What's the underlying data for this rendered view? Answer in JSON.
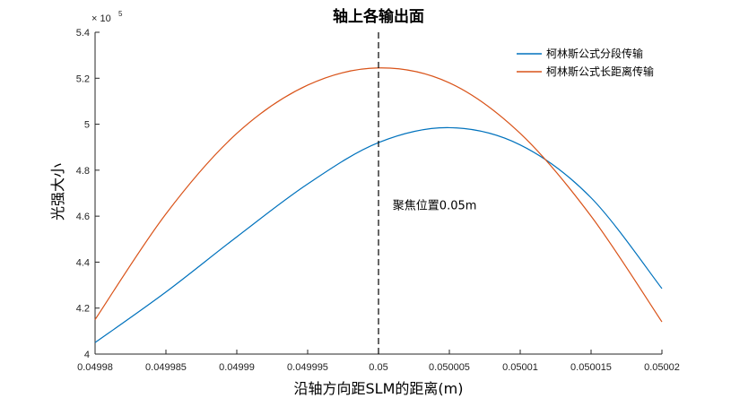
{
  "chart_data": {
    "type": "line",
    "title": "轴上各输出面",
    "xlabel": "沿轴方向距SLM的距离(m)",
    "ylabel": "光强大小",
    "xlim": [
      0.04998,
      0.05002
    ],
    "ylim": [
      400000,
      540000
    ],
    "xticks": [
      {
        "value": 0.04998,
        "label": "0.04998"
      },
      {
        "value": 0.049985,
        "label": "0.049985"
      },
      {
        "value": 0.04999,
        "label": "0.04999"
      },
      {
        "value": 0.049995,
        "label": "0.049995"
      },
      {
        "value": 0.05,
        "label": "0.05"
      },
      {
        "value": 0.050005,
        "label": "0.050005"
      },
      {
        "value": 0.05001,
        "label": "0.05001"
      },
      {
        "value": 0.050015,
        "label": "0.050015"
      },
      {
        "value": 0.05002,
        "label": "0.05002"
      }
    ],
    "yticks": [
      {
        "value": 400000,
        "label": "4"
      },
      {
        "value": 420000,
        "label": "4.2"
      },
      {
        "value": 440000,
        "label": "4.4"
      },
      {
        "value": 460000,
        "label": "4.6"
      },
      {
        "value": 480000,
        "label": "4.8"
      },
      {
        "value": 500000,
        "label": "5"
      },
      {
        "value": 520000,
        "label": "5.2"
      },
      {
        "value": 540000,
        "label": "5.4"
      }
    ],
    "y_multiplier": {
      "base": "× 10",
      "exponent": "5"
    },
    "grid": false,
    "legend_position": "top-right",
    "series": [
      {
        "name": "柯林斯公式分段传输",
        "color": "#0072BD",
        "x": [
          0.04998,
          0.049985,
          0.04999,
          0.049995,
          0.05,
          0.050005,
          0.05001,
          0.050015,
          0.05002
        ],
        "y": [
          405000,
          427000,
          451000,
          474000,
          492000,
          498500,
          491000,
          468000,
          428500
        ]
      },
      {
        "name": "柯林斯公式长距离传输",
        "color": "#D95319",
        "x": [
          0.04998,
          0.049985,
          0.04999,
          0.049995,
          0.05,
          0.050005,
          0.05001,
          0.050015,
          0.05002
        ],
        "y": [
          415000,
          461000,
          496000,
          517000,
          524500,
          518000,
          496000,
          460000,
          414000
        ]
      }
    ],
    "reference_line": {
      "x": 0.05,
      "style": "dashed",
      "color": "#000000"
    },
    "annotations": [
      {
        "text": "聚焦位置0.05m",
        "x": 0.050001,
        "y": 463000
      }
    ]
  }
}
